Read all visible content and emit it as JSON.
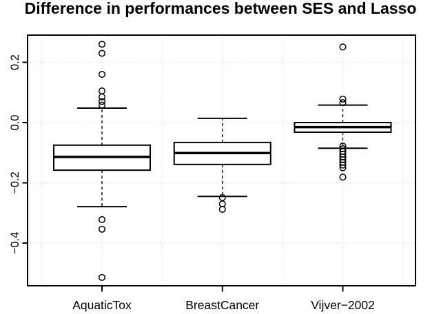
{
  "title": "Difference in performances between SES and Lasso",
  "chart_data": {
    "type": "boxplot",
    "title": "Difference in performances between SES and Lasso",
    "xlabel": "",
    "ylabel": "",
    "categories": [
      "AquaticTox",
      "BreastCancer",
      "Vijver−2002"
    ],
    "y_ticks": [
      {
        "value": 0.2,
        "label": "0.2"
      },
      {
        "value": 0.0,
        "label": "0.0"
      },
      {
        "value": -0.2,
        "label": "−0.2"
      },
      {
        "value": -0.4,
        "label": "−0.4"
      }
    ],
    "ylim": [
      -0.545,
      0.29
    ],
    "grid": {
      "visible": true,
      "style": "dotted",
      "x_positions_data": [
        0.5,
        1,
        1.5,
        2,
        2.5,
        3,
        3.5
      ],
      "y_positions_values": [
        0.2,
        0.0,
        -0.2,
        -0.4
      ]
    },
    "series": [
      {
        "name": "AquaticTox",
        "x": 1,
        "q3": -0.075,
        "median": -0.114,
        "q1": -0.158,
        "whisker_high": 0.048,
        "whisker_low": -0.279,
        "outliers": [
          0.26,
          0.23,
          0.16,
          0.105,
          0.085,
          0.07,
          0.058,
          -0.322,
          -0.354,
          -0.514
        ]
      },
      {
        "name": "BreastCancer",
        "x": 2,
        "q3": -0.066,
        "median": -0.101,
        "q1": -0.139,
        "whisker_high": 0.014,
        "whisker_low": -0.245,
        "outliers": [
          -0.249,
          -0.27,
          -0.288
        ]
      },
      {
        "name": "Vijver−2002",
        "x": 3,
        "q3": 0.0,
        "median": -0.015,
        "q1": -0.032,
        "whisker_high": 0.058,
        "whisker_low": -0.085,
        "outliers": [
          0.251,
          0.078,
          0.066,
          -0.078,
          -0.087,
          -0.096,
          -0.105,
          -0.114,
          -0.123,
          -0.132,
          -0.141,
          -0.15,
          -0.181
        ]
      }
    ],
    "colors": {
      "stroke": "#000000",
      "box_fill": "#ffffff",
      "grid": "#cccccc",
      "background": "#ffffff"
    },
    "legend": "none"
  }
}
